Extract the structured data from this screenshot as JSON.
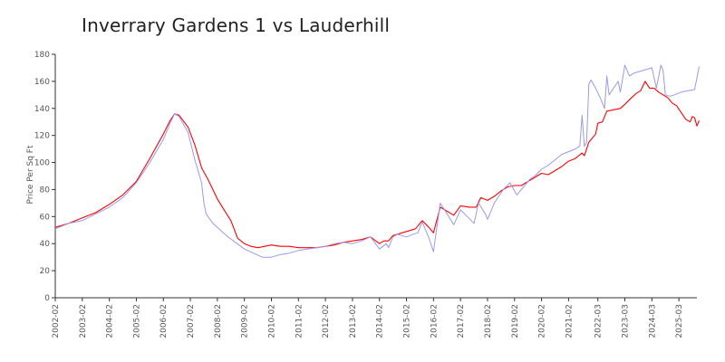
{
  "chart_data": {
    "type": "line",
    "title": "Inverrary Gardens 1 vs Lauderhill",
    "xlabel": "",
    "ylabel": "Price Per Sq Ft",
    "ylim": [
      0,
      180
    ],
    "y_ticks": [
      0,
      20,
      40,
      60,
      80,
      100,
      120,
      140,
      160,
      180
    ],
    "x_range": [
      "2002-02",
      "2025-11"
    ],
    "x_ticks": [
      "2002-02",
      "2003-02",
      "2004-02",
      "2005-02",
      "2006-02",
      "2007-02",
      "2008-02",
      "2009-02",
      "2010-02",
      "2011-02",
      "2012-02",
      "2013-02",
      "2014-02",
      "2015-02",
      "2016-02",
      "2017-02",
      "2018-02",
      "2019-02",
      "2020-02",
      "2021-02",
      "2022-03",
      "2023-03",
      "2024-03",
      "2025-03"
    ],
    "grid": false,
    "legend": "none",
    "series": [
      {
        "color": "#ff0000",
        "points": [
          [
            "2002-02",
            52
          ],
          [
            "2002-08",
            55
          ],
          [
            "2003-02",
            59
          ],
          [
            "2003-08",
            63
          ],
          [
            "2004-02",
            69
          ],
          [
            "2004-08",
            76
          ],
          [
            "2005-02",
            86
          ],
          [
            "2005-08",
            103
          ],
          [
            "2006-02",
            121
          ],
          [
            "2006-05",
            131
          ],
          [
            "2006-07",
            136
          ],
          [
            "2006-09",
            135
          ],
          [
            "2007-01",
            126
          ],
          [
            "2007-04",
            113
          ],
          [
            "2007-07",
            96
          ],
          [
            "2007-10",
            87
          ],
          [
            "2008-02",
            73
          ],
          [
            "2008-05",
            65
          ],
          [
            "2008-08",
            57
          ],
          [
            "2008-11",
            44
          ],
          [
            "2009-02",
            40
          ],
          [
            "2009-05",
            38
          ],
          [
            "2009-08",
            37
          ],
          [
            "2009-11",
            38
          ],
          [
            "2010-02",
            39
          ],
          [
            "2010-06",
            38
          ],
          [
            "2010-10",
            38
          ],
          [
            "2011-02",
            37
          ],
          [
            "2011-06",
            37
          ],
          [
            "2011-10",
            37
          ],
          [
            "2012-02",
            38
          ],
          [
            "2012-06",
            39
          ],
          [
            "2012-10",
            41
          ],
          [
            "2013-02",
            42
          ],
          [
            "2013-06",
            43
          ],
          [
            "2013-10",
            45
          ],
          [
            "2014-02",
            40
          ],
          [
            "2014-04",
            42
          ],
          [
            "2014-06",
            42
          ],
          [
            "2014-08",
            46
          ],
          [
            "2014-10",
            47
          ],
          [
            "2015-02",
            49
          ],
          [
            "2015-04",
            50
          ],
          [
            "2015-06",
            51
          ],
          [
            "2015-09",
            57
          ],
          [
            "2015-12",
            52
          ],
          [
            "2016-02",
            48
          ],
          [
            "2016-05",
            67
          ],
          [
            "2016-08",
            64
          ],
          [
            "2016-11",
            61
          ],
          [
            "2017-02",
            68
          ],
          [
            "2017-06",
            67
          ],
          [
            "2017-09",
            67
          ],
          [
            "2017-11",
            74
          ],
          [
            "2018-02",
            72
          ],
          [
            "2018-05",
            75
          ],
          [
            "2018-08",
            79
          ],
          [
            "2018-11",
            82
          ],
          [
            "2019-02",
            83
          ],
          [
            "2019-05",
            83
          ],
          [
            "2019-08",
            86
          ],
          [
            "2019-11",
            89
          ],
          [
            "2020-02",
            92
          ],
          [
            "2020-05",
            91
          ],
          [
            "2020-08",
            94
          ],
          [
            "2020-11",
            97
          ],
          [
            "2021-02",
            101
          ],
          [
            "2021-05",
            103
          ],
          [
            "2021-08",
            107
          ],
          [
            "2021-09",
            105
          ],
          [
            "2021-11",
            115
          ],
          [
            "2022-02",
            121
          ],
          [
            "2022-03",
            129
          ],
          [
            "2022-05",
            130
          ],
          [
            "2022-07",
            138
          ],
          [
            "2022-10",
            139
          ],
          [
            "2023-01",
            140
          ],
          [
            "2023-03",
            143
          ],
          [
            "2023-06",
            148
          ],
          [
            "2023-08",
            151
          ],
          [
            "2023-10",
            153
          ],
          [
            "2023-12",
            160
          ],
          [
            "2024-02",
            155
          ],
          [
            "2024-04",
            155
          ],
          [
            "2024-06",
            152
          ],
          [
            "2024-08",
            150
          ],
          [
            "2024-10",
            148
          ],
          [
            "2024-12",
            144
          ],
          [
            "2025-02",
            142
          ],
          [
            "2025-04",
            137
          ],
          [
            "2025-06",
            132
          ],
          [
            "2025-08",
            130
          ],
          [
            "2025-09",
            134
          ],
          [
            "2025-10",
            133
          ],
          [
            "2025-11",
            127
          ],
          [
            "2025-12",
            131
          ]
        ]
      },
      {
        "color": "#9999ee",
        "points": [
          [
            "2002-02",
            51
          ],
          [
            "2002-08",
            55
          ],
          [
            "2003-02",
            57
          ],
          [
            "2003-08",
            62
          ],
          [
            "2004-02",
            67
          ],
          [
            "2004-08",
            74
          ],
          [
            "2005-02",
            85
          ],
          [
            "2005-08",
            100
          ],
          [
            "2006-02",
            117
          ],
          [
            "2006-05",
            129
          ],
          [
            "2006-07",
            136
          ],
          [
            "2006-09",
            134
          ],
          [
            "2007-01",
            122
          ],
          [
            "2007-04",
            102
          ],
          [
            "2007-07",
            85
          ],
          [
            "2007-08",
            70
          ],
          [
            "2007-09",
            62
          ],
          [
            "2007-12",
            55
          ],
          [
            "2008-02",
            52
          ],
          [
            "2008-06",
            46
          ],
          [
            "2008-10",
            41
          ],
          [
            "2009-02",
            36
          ],
          [
            "2009-06",
            33
          ],
          [
            "2009-10",
            30
          ],
          [
            "2010-02",
            30
          ],
          [
            "2010-06",
            32
          ],
          [
            "2010-10",
            33
          ],
          [
            "2011-02",
            35
          ],
          [
            "2011-06",
            36
          ],
          [
            "2011-10",
            37
          ],
          [
            "2012-02",
            38
          ],
          [
            "2012-06",
            40
          ],
          [
            "2012-10",
            41
          ],
          [
            "2013-02",
            40
          ],
          [
            "2013-06",
            42
          ],
          [
            "2013-10",
            45
          ],
          [
            "2014-02",
            36
          ],
          [
            "2014-05",
            40
          ],
          [
            "2014-06",
            37
          ],
          [
            "2014-08",
            45
          ],
          [
            "2014-10",
            47
          ],
          [
            "2015-02",
            45
          ],
          [
            "2015-05",
            47
          ],
          [
            "2015-07",
            48
          ],
          [
            "2015-09",
            56
          ],
          [
            "2015-12",
            44
          ],
          [
            "2016-02",
            34
          ],
          [
            "2016-05",
            70
          ],
          [
            "2016-08",
            62
          ],
          [
            "2016-11",
            54
          ],
          [
            "2017-02",
            65
          ],
          [
            "2017-05",
            60
          ],
          [
            "2017-08",
            55
          ],
          [
            "2017-10",
            70
          ],
          [
            "2018-01",
            62
          ],
          [
            "2018-02",
            58
          ],
          [
            "2018-05",
            70
          ],
          [
            "2018-09",
            80
          ],
          [
            "2018-12",
            85
          ],
          [
            "2019-03",
            76
          ],
          [
            "2019-06",
            82
          ],
          [
            "2019-09",
            88
          ],
          [
            "2019-11",
            90
          ],
          [
            "2020-02",
            95
          ],
          [
            "2020-05",
            98
          ],
          [
            "2020-08",
            102
          ],
          [
            "2020-11",
            106
          ],
          [
            "2021-02",
            108
          ],
          [
            "2021-05",
            110
          ],
          [
            "2021-07",
            112
          ],
          [
            "2021-08",
            135
          ],
          [
            "2021-09",
            112
          ],
          [
            "2021-10",
            115
          ],
          [
            "2021-11",
            158
          ],
          [
            "2021-12",
            161
          ],
          [
            "2022-02",
            155
          ],
          [
            "2022-04",
            148
          ],
          [
            "2022-06",
            140
          ],
          [
            "2022-07",
            164
          ],
          [
            "2022-08",
            150
          ],
          [
            "2022-10",
            155
          ],
          [
            "2022-12",
            160
          ],
          [
            "2023-01",
            152
          ],
          [
            "2023-03",
            172
          ],
          [
            "2023-05",
            164
          ],
          [
            "2023-07",
            166
          ],
          [
            "2023-09",
            167
          ],
          [
            "2023-11",
            168
          ],
          [
            "2024-01",
            169
          ],
          [
            "2024-03",
            170
          ],
          [
            "2024-05",
            155
          ],
          [
            "2024-07",
            172
          ],
          [
            "2024-08",
            168
          ],
          [
            "2024-09",
            150
          ],
          [
            "2024-11",
            149
          ],
          [
            "2025-01",
            150
          ],
          [
            "2025-04",
            152
          ],
          [
            "2025-07",
            153
          ],
          [
            "2025-10",
            154
          ],
          [
            "2025-12",
            171
          ]
        ]
      }
    ]
  }
}
